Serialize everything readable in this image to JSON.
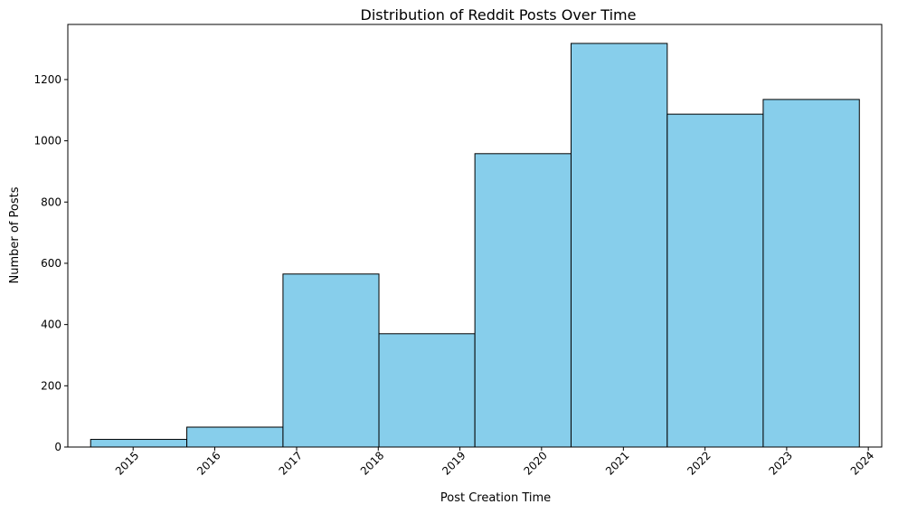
{
  "chart_data": {
    "type": "bar",
    "title": "Distribution of Reddit Posts Over Time",
    "xlabel": "Post Creation Time",
    "ylabel": "Number of Posts",
    "bins": [
      {
        "start": "2014-06-25",
        "end": "2015-08-29",
        "count": 25
      },
      {
        "start": "2015-08-29",
        "end": "2016-11-01",
        "count": 65
      },
      {
        "start": "2016-11-01",
        "end": "2018-01-04",
        "count": 565
      },
      {
        "start": "2018-01-04",
        "end": "2019-03-09",
        "count": 370
      },
      {
        "start": "2019-03-09",
        "end": "2020-05-12",
        "count": 958
      },
      {
        "start": "2020-05-12",
        "end": "2021-07-16",
        "count": 1318
      },
      {
        "start": "2021-07-16",
        "end": "2022-09-18",
        "count": 1087
      },
      {
        "start": "2022-09-18",
        "end": "2023-11-22",
        "count": 1135
      }
    ],
    "xlim": [
      "2014-03-15",
      "2024-03-01"
    ],
    "ylim": [
      0,
      1380
    ],
    "xticks": [
      "2015",
      "2016",
      "2017",
      "2018",
      "2019",
      "2020",
      "2021",
      "2022",
      "2023",
      "2024"
    ],
    "yticks": [
      0,
      200,
      400,
      600,
      800,
      1000,
      1200
    ],
    "bar_color": "#87CEEB",
    "edge_color": "#000000",
    "grid": false
  }
}
